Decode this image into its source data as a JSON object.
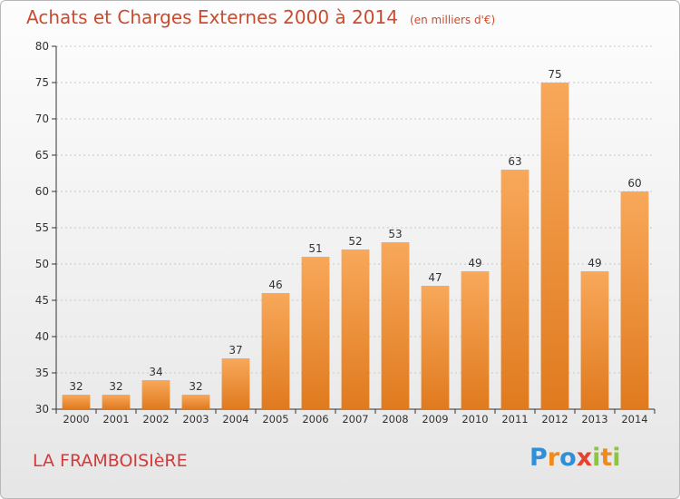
{
  "title": {
    "main": "Achats et Charges Externes 2000 à 2014",
    "unit": "(en milliers d'€)"
  },
  "commune": "LA FRAMBOISIèRE",
  "logo": {
    "letters": [
      "P",
      "r",
      "o",
      "x",
      "i",
      "t",
      "i"
    ]
  },
  "colors": {
    "bar_light": "#f8a85a",
    "bar_dark": "#e07a1e",
    "title": "#cc4a2e",
    "commune": "#d33a3a",
    "grid": "#c8c8c8"
  },
  "chart_data": {
    "type": "bar",
    "title": "Achats et Charges Externes 2000 à 2014",
    "subtitle": "(en milliers d'€)",
    "xlabel": "",
    "ylabel": "",
    "categories": [
      "2000",
      "2001",
      "2002",
      "2003",
      "2004",
      "2005",
      "2006",
      "2007",
      "2008",
      "2009",
      "2010",
      "2011",
      "2012",
      "2013",
      "2014"
    ],
    "values": [
      32,
      32,
      34,
      32,
      37,
      46,
      51,
      52,
      53,
      47,
      49,
      63,
      75,
      49,
      60
    ],
    "ylim": [
      30,
      80
    ],
    "yticks": [
      30,
      35,
      40,
      45,
      50,
      55,
      60,
      65,
      70,
      75,
      80
    ],
    "grid": true,
    "data_labels": true
  }
}
